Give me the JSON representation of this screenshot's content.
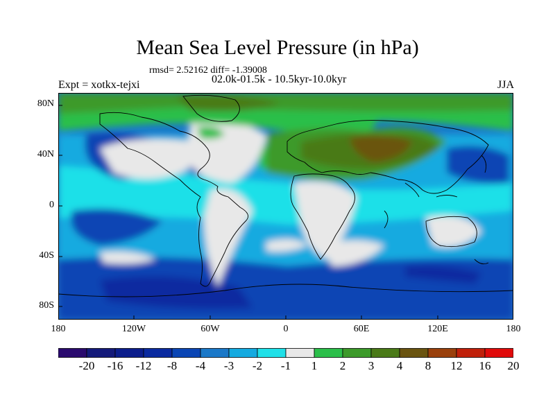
{
  "title": "Mean Sea Level Pressure (in hPa)",
  "stats": "rmsd= 2.52162 diff= -1.39008",
  "period": "02.0k-01.5k - 10.5kyr-10.0kyr",
  "expt": "Expt = xotkx-tejxi",
  "season": "JJA",
  "lat_ticks": [
    "80N",
    "40N",
    "0",
    "40S",
    "80S"
  ],
  "lon_ticks": [
    "180",
    "120W",
    "60W",
    "0",
    "60E",
    "120E",
    "180"
  ],
  "colorbar": {
    "labels": [
      "-20",
      "-16",
      "-12",
      "-8",
      "-4",
      "-3",
      "-2",
      "-1",
      "1",
      "2",
      "3",
      "4",
      "8",
      "12",
      "16",
      "20"
    ],
    "colors": [
      "#2a0a6e",
      "#141a7a",
      "#0c1e8c",
      "#0a2aa0",
      "#0a45b4",
      "#1a78c8",
      "#14aae0",
      "#1fe0e8",
      "#e8e8e8",
      "#2bbf4a",
      "#3c9a2a",
      "#4a7a18",
      "#6a5410",
      "#9a400c",
      "#c0200a",
      "#e00a0a"
    ]
  }
}
